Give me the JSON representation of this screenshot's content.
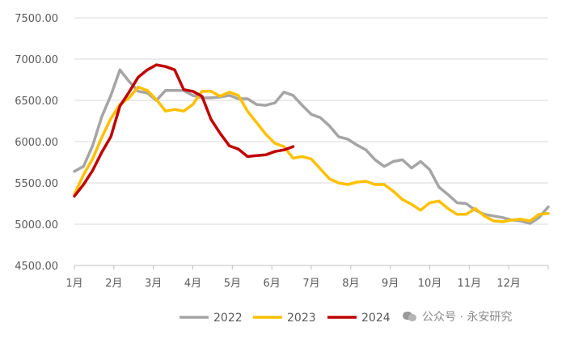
{
  "chart_data": {
    "type": "line",
    "title": "",
    "xlabel": "",
    "ylabel": "",
    "ylim": [
      4500,
      7500
    ],
    "y_ticks": [
      "4500.00",
      "5000.00",
      "5500.00",
      "6000.00",
      "6500.00",
      "7000.00",
      "7500.00"
    ],
    "x_tick_labels": [
      "1月",
      "2月",
      "3月",
      "4月",
      "5月",
      "6月",
      "7月",
      "8月",
      "9月",
      "10月",
      "11月",
      "12月"
    ],
    "x_domain_weeks": [
      1,
      53
    ],
    "grid": "horizontal",
    "legend_position": "bottom-right",
    "series": [
      {
        "name": "2022",
        "color": "#a5a5a5",
        "x": [
          1,
          2,
          3,
          4,
          5,
          6,
          7,
          8,
          9,
          10,
          11,
          12,
          13,
          14,
          15,
          16,
          17,
          18,
          19,
          20,
          21,
          22,
          23,
          24,
          25,
          26,
          27,
          28,
          29,
          30,
          31,
          32,
          33,
          34,
          35,
          36,
          37,
          38,
          39,
          40,
          41,
          42,
          43,
          44,
          45,
          46,
          47,
          48,
          49,
          50,
          51,
          52,
          53
        ],
        "values": [
          5640,
          5700,
          5950,
          6300,
          6560,
          6870,
          6730,
          6610,
          6590,
          6500,
          6620,
          6620,
          6620,
          6560,
          6530,
          6530,
          6540,
          6560,
          6520,
          6520,
          6450,
          6440,
          6470,
          6600,
          6560,
          6440,
          6330,
          6290,
          6190,
          6060,
          6030,
          5960,
          5900,
          5780,
          5700,
          5760,
          5780,
          5680,
          5760,
          5660,
          5450,
          5360,
          5260,
          5250,
          5170,
          5120,
          5100,
          5080,
          5050,
          5040,
          5010,
          5080,
          5210
        ]
      },
      {
        "name": "2023",
        "color": "#ffc000",
        "x": [
          1,
          2,
          3,
          4,
          5,
          6,
          7,
          8,
          9,
          10,
          11,
          12,
          13,
          14,
          15,
          16,
          17,
          18,
          19,
          20,
          21,
          22,
          23,
          24,
          25,
          26,
          27,
          28,
          29,
          30,
          31,
          32,
          33,
          34,
          35,
          36,
          37,
          38,
          39,
          40,
          41,
          42,
          43,
          44,
          45,
          46,
          47,
          48,
          49,
          50,
          51,
          52,
          53
        ],
        "values": [
          5360,
          5600,
          5790,
          6050,
          6280,
          6450,
          6530,
          6660,
          6620,
          6510,
          6370,
          6390,
          6370,
          6450,
          6610,
          6610,
          6550,
          6600,
          6560,
          6370,
          6230,
          6090,
          5980,
          5940,
          5800,
          5820,
          5790,
          5670,
          5550,
          5500,
          5480,
          5510,
          5520,
          5480,
          5480,
          5400,
          5300,
          5240,
          5170,
          5260,
          5280,
          5190,
          5120,
          5120,
          5190,
          5100,
          5040,
          5030,
          5050,
          5060,
          5040,
          5120,
          5130
        ]
      },
      {
        "name": "2024",
        "color": "#c00000",
        "x": [
          1,
          2,
          3,
          4,
          5,
          6,
          7,
          8,
          9,
          10,
          11,
          12,
          13,
          14,
          15,
          16,
          17,
          18,
          19,
          20,
          21,
          22,
          23,
          24,
          25
        ],
        "values": [
          5340,
          5480,
          5650,
          5870,
          6060,
          6430,
          6600,
          6780,
          6870,
          6930,
          6910,
          6870,
          6630,
          6610,
          6550,
          6270,
          6100,
          5950,
          5910,
          5820,
          5830,
          5840,
          5880,
          5900,
          5940
        ]
      }
    ]
  },
  "watermark": {
    "text": "公众号 · 永安研究",
    "icon": "wechat-icon"
  }
}
